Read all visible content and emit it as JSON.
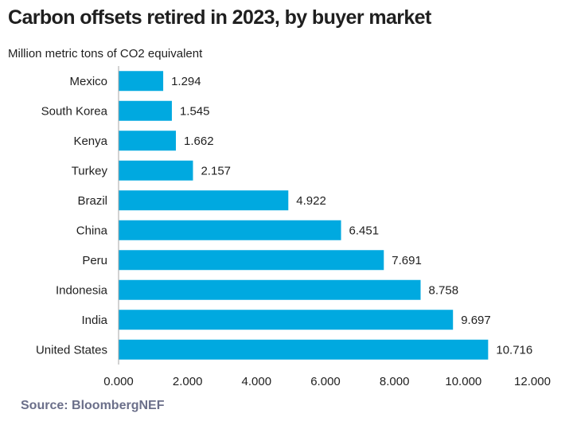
{
  "title": "Carbon offsets retired in 2023, by buyer market",
  "source": "Source: BloombergNEF",
  "chart_data": {
    "type": "bar",
    "orientation": "horizontal",
    "title": "Carbon offsets retired in 2023, by buyer market",
    "unit_label": "Million metric tons of CO2 equivalent",
    "categories": [
      "Mexico",
      "South Korea",
      "Kenya",
      "Turkey",
      "Brazil",
      "China",
      "Peru",
      "Indonesia",
      "India",
      "United States"
    ],
    "values": [
      1.294,
      1.545,
      1.662,
      2.157,
      4.922,
      6.451,
      7.691,
      8.758,
      9.697,
      10.716
    ],
    "value_labels": [
      "1.294",
      "1.545",
      "1.662",
      "2.157",
      "4.922",
      "6.451",
      "7.691",
      "8.758",
      "9.697",
      "10.716"
    ],
    "xlim": [
      0,
      12
    ],
    "xticks": [
      0,
      2,
      4,
      6,
      8,
      10,
      12
    ],
    "xtick_labels": [
      "0.000",
      "2.000",
      "4.000",
      "6.000",
      "8.000",
      "10.000",
      "12.000"
    ],
    "grid": false,
    "bar_color": "#00a9e0",
    "axis_color": "#a6a6a6"
  }
}
